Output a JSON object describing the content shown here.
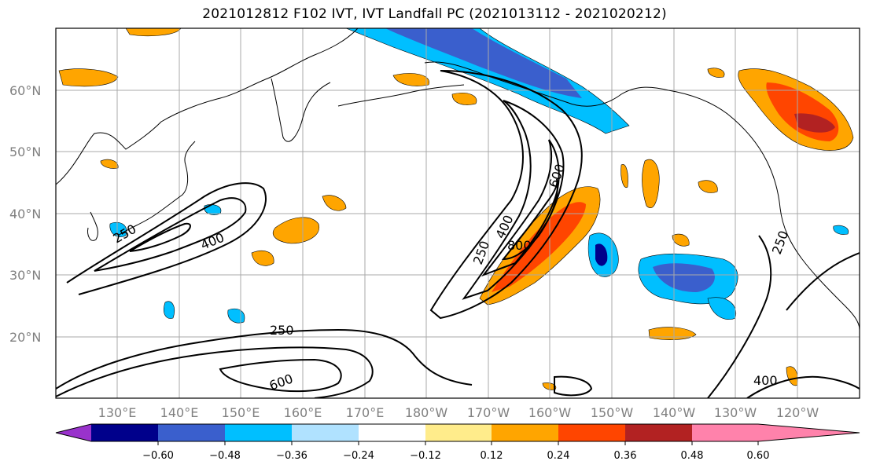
{
  "title": "2021012812 F102 IVT, IVT Landfall PC (2021013112 - 2021020212)",
  "lat_labels": [
    "60°N",
    "50°N",
    "40°N",
    "30°N",
    "20°N"
  ],
  "lon_labels": [
    "130°E",
    "140°E",
    "150°E",
    "160°E",
    "170°E",
    "180°W",
    "170°W",
    "160°W",
    "150°W",
    "140°W",
    "130°W",
    "120°W"
  ],
  "contour_labels": [
    "250",
    "400",
    "600",
    "250",
    "400",
    "600",
    "800",
    "250",
    "250",
    "400"
  ],
  "colorbar": {
    "tick_labels": [
      "−0.60",
      "−0.48",
      "−0.36",
      "−0.24",
      "−0.12",
      "0.12",
      "0.24",
      "0.36",
      "0.48",
      "0.60"
    ],
    "colors": [
      "#9932cc",
      "#00008b",
      "#3a5fcd",
      "#00bfff",
      "#b0e2ff",
      "#ffffff",
      "#ffec8b",
      "#ffa500",
      "#ff4500",
      "#b22222",
      "#ff82ab"
    ]
  }
}
